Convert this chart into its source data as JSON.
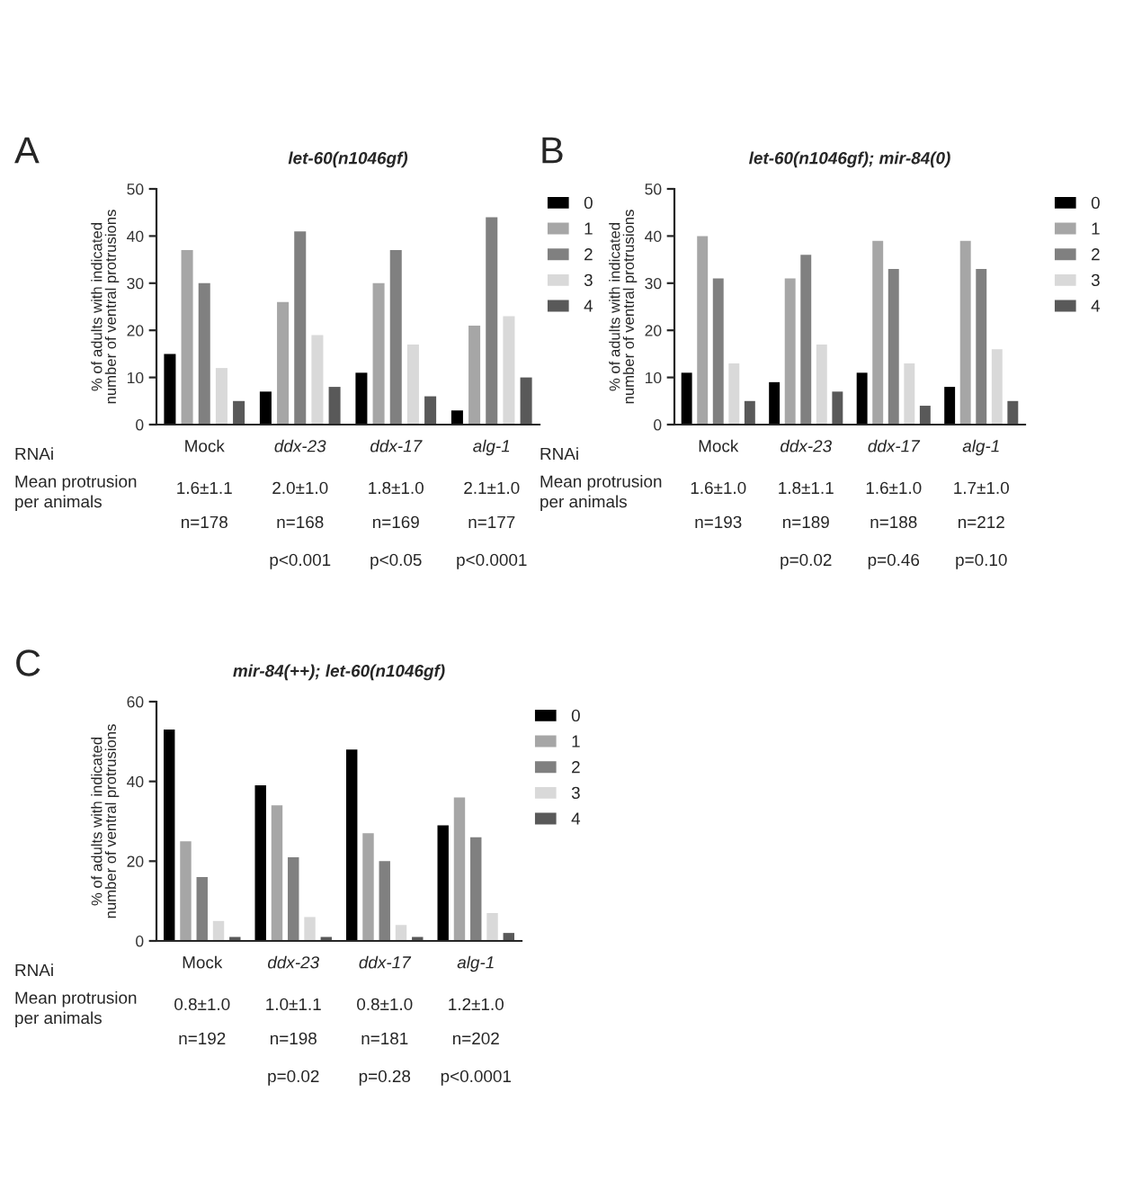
{
  "chart_data": [
    {
      "type": "bar",
      "title": "let-60(n1046gf)",
      "xlabel": "RNAi",
      "ylabel": "% of adults with indicated\nnumber of ventral protrusions",
      "categories": [
        "Mock",
        "ddx-23",
        "ddx-17",
        "alg-1"
      ],
      "ylim": [
        0,
        50
      ],
      "yticks": [
        0,
        10,
        20,
        30,
        40,
        50
      ],
      "legend": "right",
      "series": [
        {
          "name": "0",
          "color": "#000000",
          "values": [
            15,
            7,
            11,
            3
          ]
        },
        {
          "name": "1",
          "color": "#a6a6a6",
          "values": [
            37,
            26,
            30,
            21
          ]
        },
        {
          "name": "2",
          "color": "#808080",
          "values": [
            30,
            41,
            37,
            44
          ]
        },
        {
          "name": "3",
          "color": "#d9d9d9",
          "values": [
            12,
            19,
            17,
            23
          ]
        },
        {
          "name": "4",
          "color": "#595959",
          "values": [
            5,
            8,
            6,
            10
          ]
        }
      ],
      "annotations": [
        "A",
        "Mean protrusion\nper animals",
        "1.6±1.1",
        "2.0±1.0",
        "1.8±1.0",
        "2.1±1.0",
        "n=178",
        "n=168",
        "n=169",
        "n=177",
        "p<0.001",
        "p<0.05",
        "p<0.0001"
      ]
    },
    {
      "type": "bar",
      "title": "let-60(n1046gf); mir-84(0)",
      "xlabel": "RNAi",
      "ylabel": "% of adults with indicated\nnumber of ventral protrusions",
      "categories": [
        "Mock",
        "ddx-23",
        "ddx-17",
        "alg-1"
      ],
      "ylim": [
        0,
        50
      ],
      "yticks": [
        0,
        10,
        20,
        30,
        40,
        50
      ],
      "legend": "right",
      "series": [
        {
          "name": "0",
          "color": "#000000",
          "values": [
            11,
            9,
            11,
            8
          ]
        },
        {
          "name": "1",
          "color": "#a6a6a6",
          "values": [
            40,
            31,
            39,
            39
          ]
        },
        {
          "name": "2",
          "color": "#808080",
          "values": [
            31,
            36,
            33,
            33
          ]
        },
        {
          "name": "3",
          "color": "#d9d9d9",
          "values": [
            13,
            17,
            13,
            16
          ]
        },
        {
          "name": "4",
          "color": "#595959",
          "values": [
            5,
            7,
            4,
            5
          ]
        }
      ],
      "annotations": [
        "B",
        "Mean protrusion\nper animals",
        "1.6±1.0",
        "1.8±1.1",
        "1.6±1.0",
        "1.7±1.0",
        "n=193",
        "n=189",
        "n=188",
        "n=212",
        "p=0.02",
        "p=0.46",
        "p=0.10"
      ]
    },
    {
      "type": "bar",
      "title": "mir-84(++); let-60(n1046gf)",
      "xlabel": "RNAi",
      "ylabel": "% of adults with indicated\nnumber of ventral protrusions",
      "categories": [
        "Mock",
        "ddx-23",
        "ddx-17",
        "alg-1"
      ],
      "ylim": [
        0,
        60
      ],
      "yticks": [
        0,
        20,
        40,
        60
      ],
      "legend": "right",
      "series": [
        {
          "name": "0",
          "color": "#000000",
          "values": [
            53,
            39,
            48,
            29
          ]
        },
        {
          "name": "1",
          "color": "#a6a6a6",
          "values": [
            25,
            34,
            27,
            36
          ]
        },
        {
          "name": "2",
          "color": "#808080",
          "values": [
            16,
            21,
            20,
            26
          ]
        },
        {
          "name": "3",
          "color": "#d9d9d9",
          "values": [
            5,
            6,
            4,
            7
          ]
        },
        {
          "name": "4",
          "color": "#595959",
          "values": [
            1,
            1,
            1,
            2
          ]
        }
      ],
      "annotations": [
        "C",
        "Mean protrusion\nper animals",
        "0.8±1.0",
        "1.0±1.1",
        "0.8±1.0",
        "1.2±1.0",
        "n=192",
        "n=198",
        "n=181",
        "n=202",
        "p=0.02",
        "p=0.28",
        "p<0.0001"
      ]
    }
  ]
}
